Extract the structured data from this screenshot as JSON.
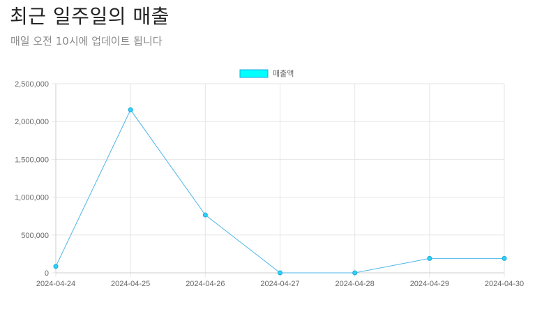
{
  "header": {
    "title": "최근 일주일의 매출",
    "subtitle": "매일 오전 10시에 업데이트 됩니다"
  },
  "colors": {
    "line": "#4fb6e8",
    "point_fill": "#2fd2f5",
    "point_stroke": "#19a9df",
    "legend_fill": "#00ffff",
    "legend_stroke": "#19a9df",
    "grid": "#e6e6e6",
    "axis": "#cccccc"
  },
  "chart_data": {
    "type": "line",
    "categories": [
      "2024-04-24",
      "2024-04-25",
      "2024-04-26",
      "2024-04-27",
      "2024-04-28",
      "2024-04-29",
      "2024-04-30"
    ],
    "series": [
      {
        "name": "매출액",
        "values": [
          85000,
          2155000,
          765000,
          0,
          0,
          190000,
          190000
        ]
      }
    ],
    "ylim": [
      0,
      2500000
    ],
    "yticks": [
      0,
      500000,
      1000000,
      1500000,
      2000000,
      2500000
    ],
    "ytick_labels": [
      "0",
      "500,000",
      "1,000,000",
      "1,500,000",
      "2,000,000",
      "2,500,000"
    ],
    "legend_position": "top-center",
    "grid": true
  }
}
